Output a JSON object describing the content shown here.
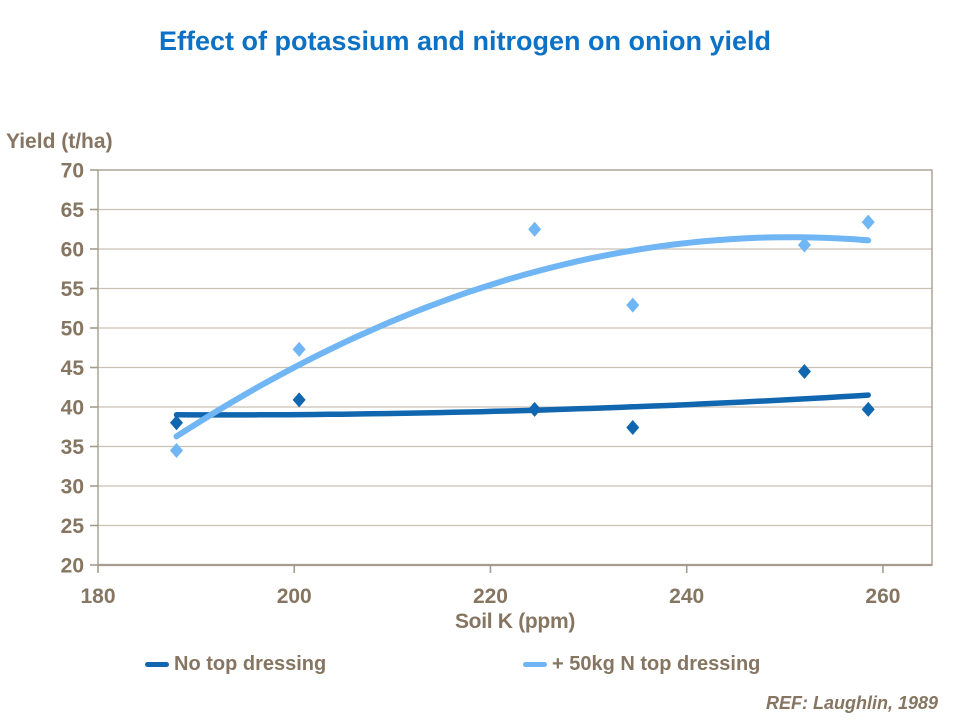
{
  "ref_note": "REF: Laughlin, 1989",
  "colors": {
    "title": "#0d71c5",
    "text": "#857561",
    "axis": "#a59c8d",
    "gridline": "#c9c1b4",
    "series_no_top_dressing": "#1166b0",
    "series_n50": "#70b5f4"
  },
  "chart_data": {
    "type": "scatter",
    "title": "Effect of potassium and nitrogen on onion yield",
    "xlabel": "Soil K (ppm)",
    "ylabel": "Yield (t/ha)",
    "xlim": [
      180,
      265
    ],
    "ylim": [
      20,
      70
    ],
    "x_ticks": [
      180,
      200,
      220,
      240,
      260
    ],
    "y_ticks": [
      20,
      25,
      30,
      35,
      40,
      45,
      50,
      55,
      60,
      65,
      70
    ],
    "grid": "horizontal",
    "legend_position": "bottom",
    "x": [
      188,
      200.5,
      224.5,
      234.5,
      252,
      258.5
    ],
    "series": [
      {
        "name": "No top dressing",
        "color": "#1166b0",
        "values": [
          38.0,
          40.9,
          39.7,
          37.4,
          44.5,
          39.7
        ],
        "trendline": "poly2",
        "marker": "diamond"
      },
      {
        "name": "+ 50kg N top dressing",
        "color": "#70b5f4",
        "values": [
          34.5,
          47.3,
          62.5,
          52.9,
          60.5,
          63.4
        ],
        "trendline": "poly2",
        "marker": "diamond"
      }
    ]
  }
}
